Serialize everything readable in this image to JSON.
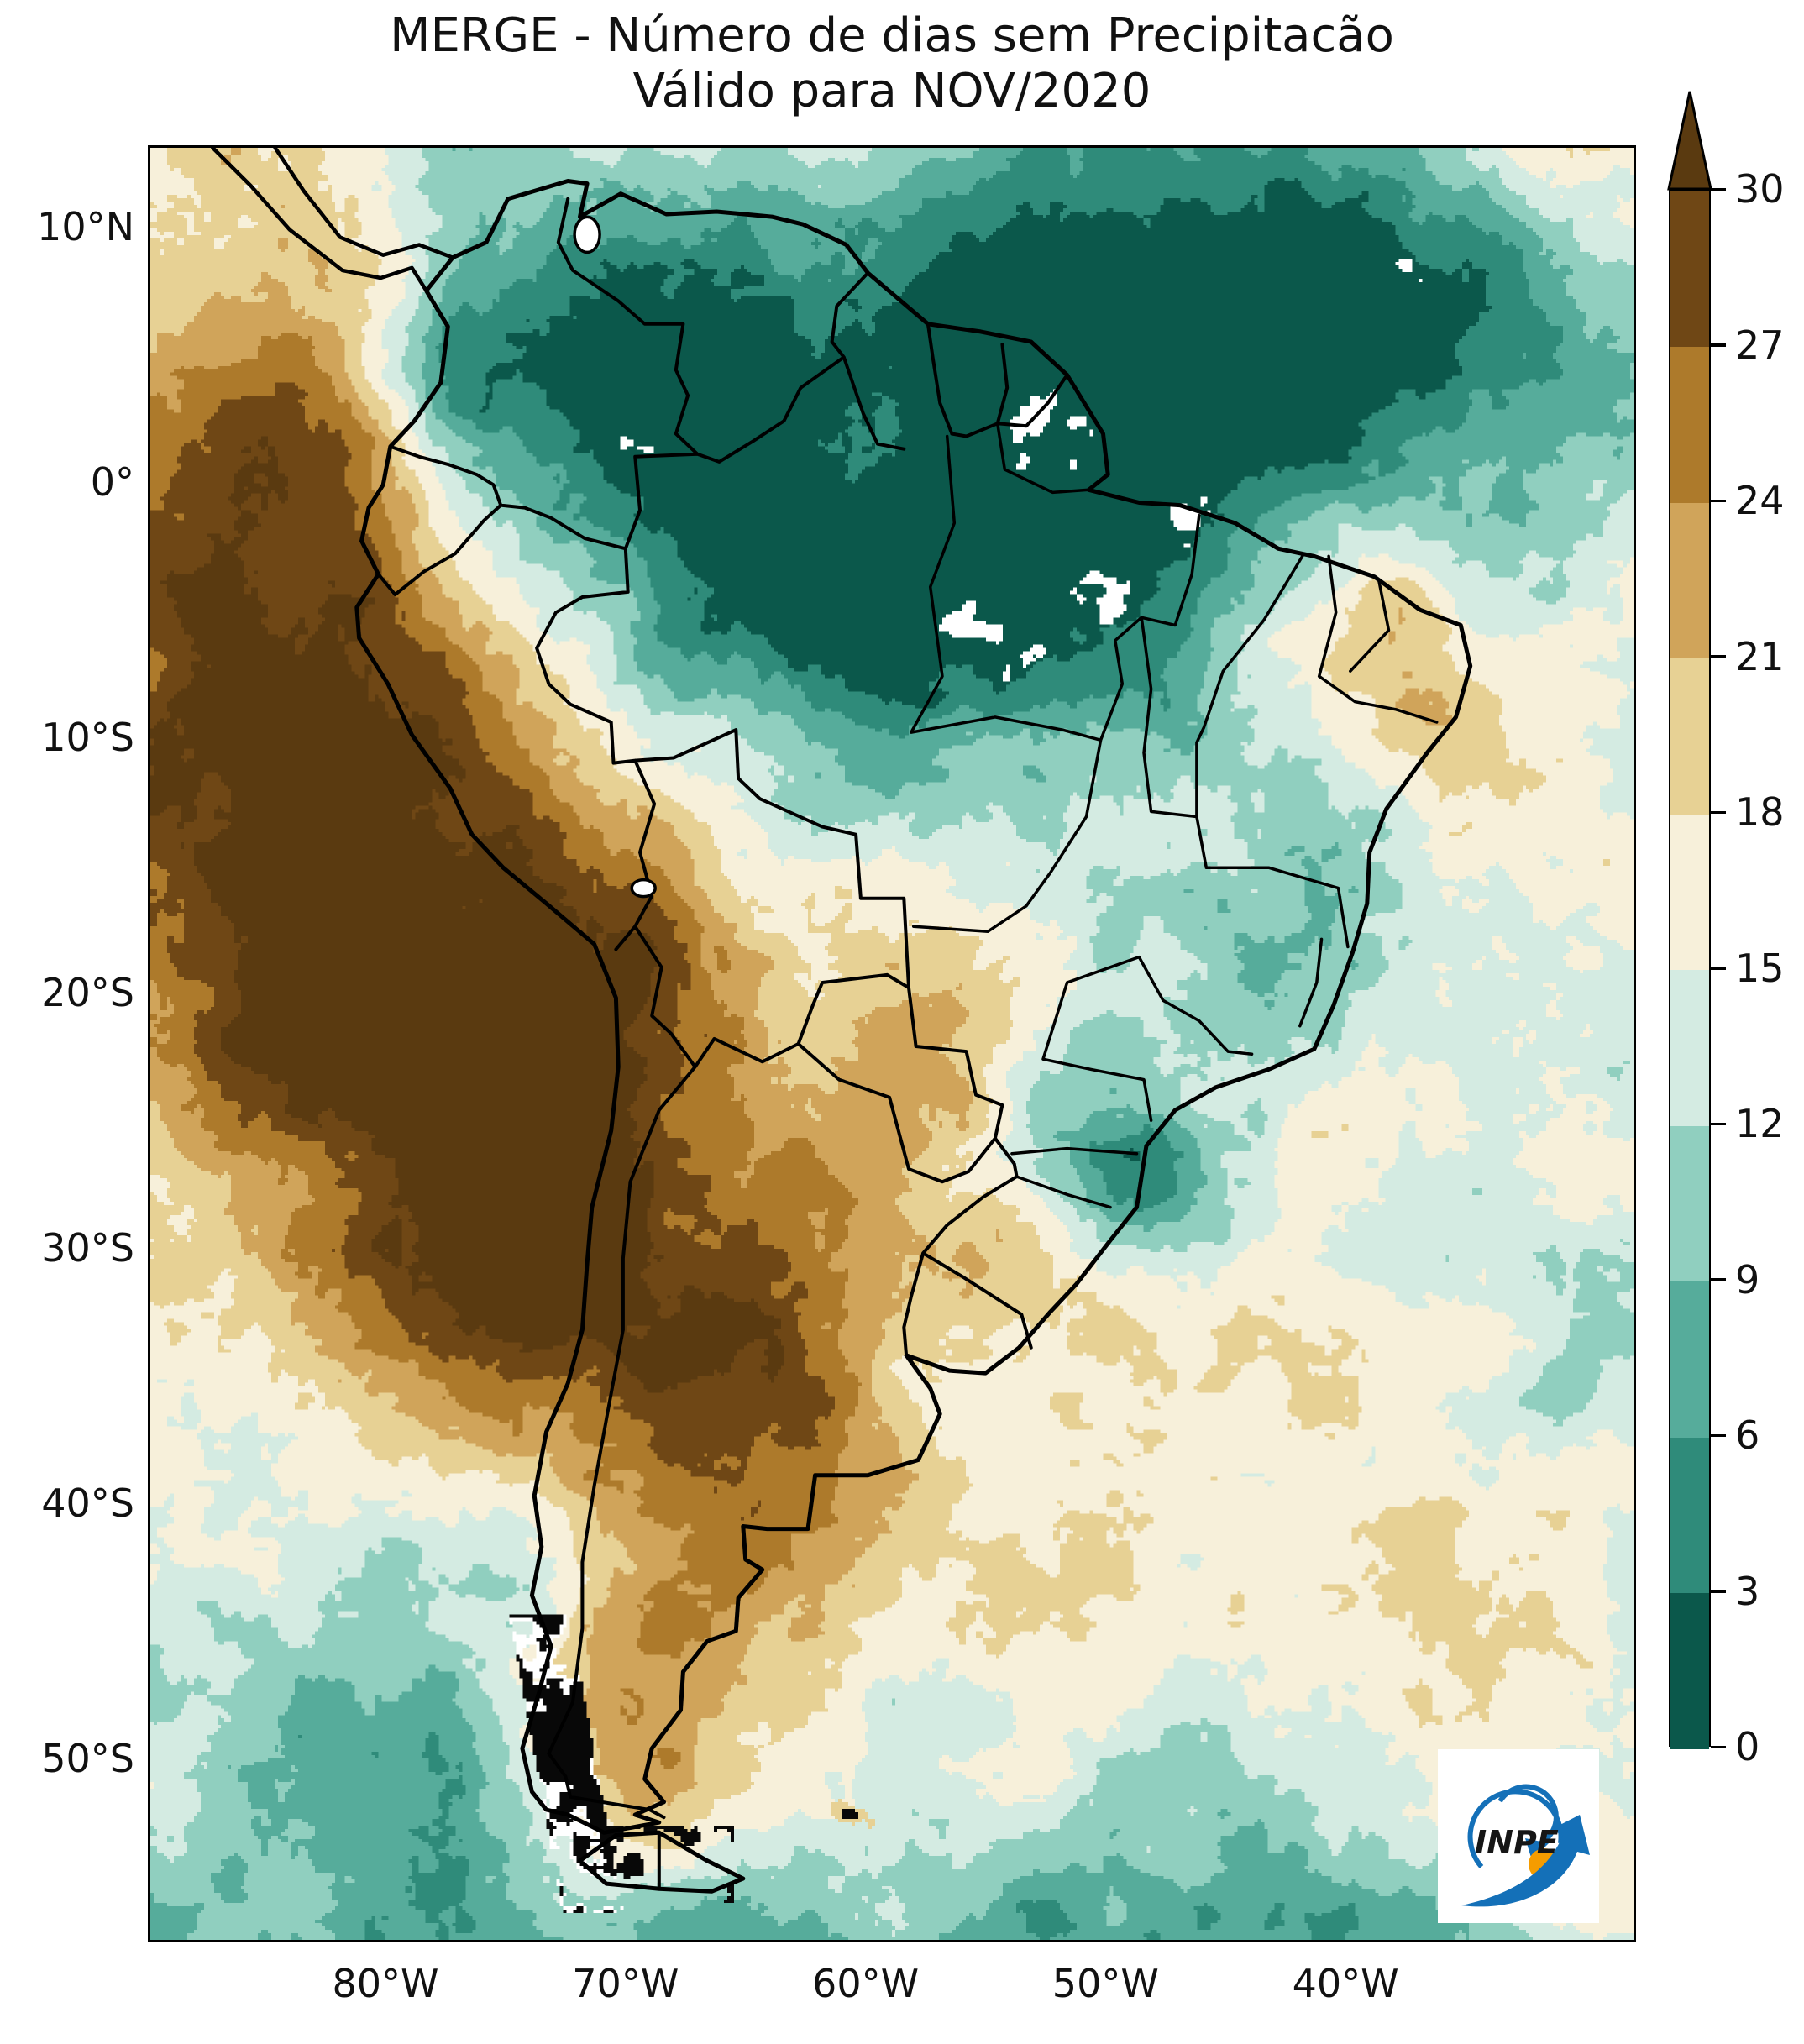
{
  "title": {
    "line1": "MERGE - Número de dias sem Precipitacão",
    "line2": "Válido para NOV/2020"
  },
  "colorbar": {
    "tick_values": [
      0,
      3,
      6,
      9,
      12,
      15,
      18,
      21,
      24,
      27,
      30
    ],
    "tick_labels": [
      "0",
      "3",
      "6",
      "9",
      "12",
      "15",
      "18",
      "21",
      "24",
      "27",
      "30"
    ],
    "min": 0,
    "max": 30,
    "segment_colors": [
      "#0b584b",
      "#2f8b7a",
      "#56ac9b",
      "#90cfbf",
      "#d4ebe2",
      "#f7f0da",
      "#e7d194",
      "#d0a45a",
      "#ad7a2b",
      "#6f4715"
    ],
    "over_color": "#5a3a10",
    "extend": "max"
  },
  "axes": {
    "lat_ticks": [
      {
        "label": "10°N",
        "deg": 10
      },
      {
        "label": "0°",
        "deg": 0
      },
      {
        "label": "10°S",
        "deg": -10
      },
      {
        "label": "20°S",
        "deg": -20
      },
      {
        "label": "30°S",
        "deg": -30
      },
      {
        "label": "40°S",
        "deg": -40
      },
      {
        "label": "50°S",
        "deg": -50
      }
    ],
    "lon_ticks": [
      {
        "label": "80°W",
        "deg": -80
      },
      {
        "label": "70°W",
        "deg": -70
      },
      {
        "label": "60°W",
        "deg": -60
      },
      {
        "label": "50°W",
        "deg": -50
      },
      {
        "label": "40°W",
        "deg": -40
      }
    ]
  },
  "map": {
    "extent": {
      "lon_min": -89.8,
      "lon_max": -28.0,
      "lat_min": -57.1,
      "lat_max": 13.1
    },
    "no_data_color": "#ffffff",
    "border_color": "#000000"
  },
  "logo": {
    "text": "INPE",
    "blue": "#1470b8",
    "orange": "#f59c00"
  },
  "chart_data": {
    "type": "heatmap",
    "title": "MERGE - Número de dias sem Precipitacão — Válido para NOV/2020",
    "variable": "Número de dias sem precipitação",
    "units": "dias",
    "bin_edges": [
      0,
      3,
      6,
      9,
      12,
      15,
      18,
      21,
      24,
      27,
      30
    ],
    "bin_colors": [
      "#0b584b",
      "#2f8b7a",
      "#56ac9b",
      "#90cfbf",
      "#d4ebe2",
      "#f7f0da",
      "#e7d194",
      "#d0a45a",
      "#ad7a2b",
      "#6f4715"
    ],
    "over_color": "#5a3a10",
    "legend_position": "right",
    "xlabel_ticks": [
      "80°W",
      "70°W",
      "60°W",
      "50°W",
      "40°W"
    ],
    "ylabel_ticks": [
      "10°N",
      "0°",
      "10°S",
      "20°S",
      "30°S",
      "40°S",
      "50°S"
    ],
    "extent": {
      "lon": [
        -89.8,
        -28.0
      ],
      "lat": [
        -57.1,
        13.1
      ]
    }
  }
}
